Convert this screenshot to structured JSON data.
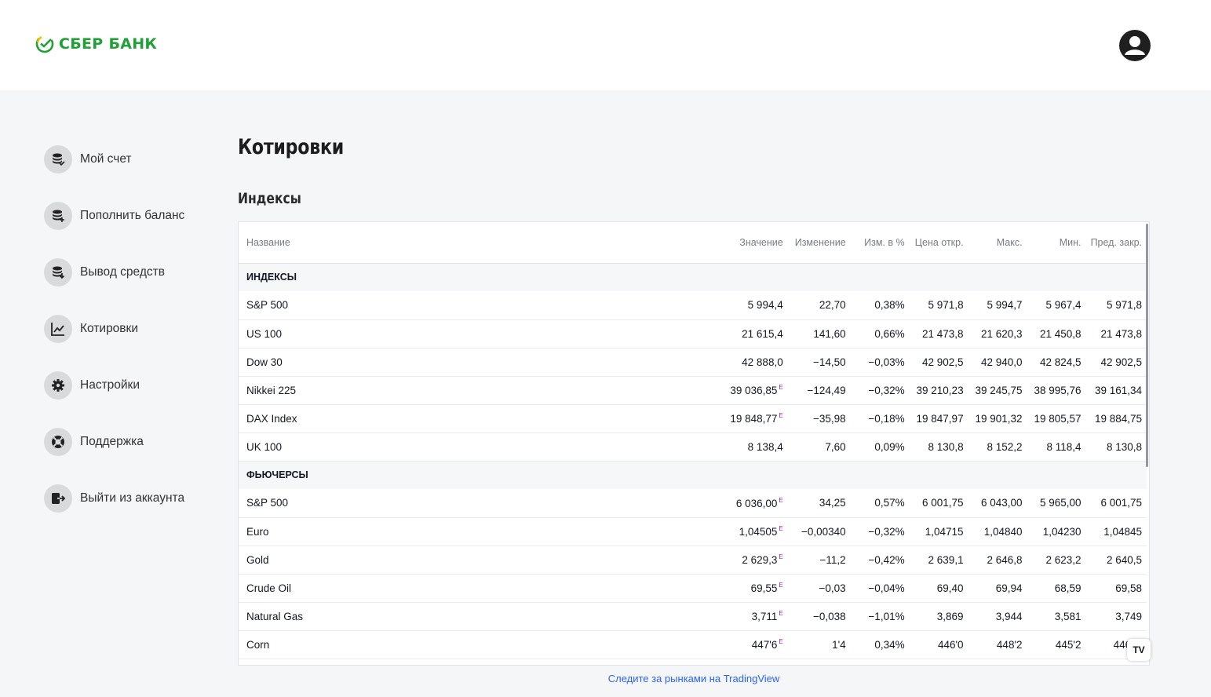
{
  "brand": {
    "name": "СБЕР БАНК",
    "accent": "#21a038"
  },
  "sidebar": {
    "items": [
      {
        "label": "Мой счет",
        "icon": "coins-check-icon"
      },
      {
        "label": "Пополнить баланс",
        "icon": "coins-plus-icon"
      },
      {
        "label": "Вывод средств",
        "icon": "coins-down-icon"
      },
      {
        "label": "Котировки",
        "icon": "chart-line-icon"
      },
      {
        "label": "Настройки",
        "icon": "gear-icon"
      },
      {
        "label": "Поддержка",
        "icon": "lifebuoy-icon"
      },
      {
        "label": "Выйти из аккаунта",
        "icon": "logout-icon"
      }
    ]
  },
  "page": {
    "title": "Котировки",
    "section": "Индексы"
  },
  "table": {
    "columns": [
      "Название",
      "Значение",
      "Изменение",
      "Изм. в %",
      "Цена откр.",
      "Макс.",
      "Мин.",
      "Пред. закр."
    ],
    "groups": [
      {
        "name": "ИНДЕКСЫ",
        "rows": [
          {
            "name": "S&P 500",
            "value": "5 994,4",
            "e": false,
            "change": "22,70",
            "pct": "0,38%",
            "dir": "pos",
            "open": "5 971,8",
            "high": "5 994,7",
            "low": "5 967,4",
            "prev": "5 971,8"
          },
          {
            "name": "US 100",
            "value": "21 615,4",
            "e": false,
            "change": "141,60",
            "pct": "0,66%",
            "dir": "pos",
            "open": "21 473,8",
            "high": "21 620,3",
            "low": "21 450,8",
            "prev": "21 473,8"
          },
          {
            "name": "Dow 30",
            "value": "42 888,0",
            "e": false,
            "change": "−14,50",
            "pct": "−0,03%",
            "dir": "neg",
            "open": "42 902,5",
            "high": "42 940,0",
            "low": "42 824,5",
            "prev": "42 902,5"
          },
          {
            "name": "Nikkei 225",
            "value": "39 036,85",
            "e": true,
            "change": "−124,49",
            "pct": "−0,32%",
            "dir": "neg",
            "open": "39 210,23",
            "high": "39 245,75",
            "low": "38 995,76",
            "prev": "39 161,34"
          },
          {
            "name": "DAX Index",
            "value": "19 848,77",
            "e": true,
            "change": "−35,98",
            "pct": "−0,18%",
            "dir": "neg",
            "open": "19 847,97",
            "high": "19 901,32",
            "low": "19 805,57",
            "prev": "19 884,75"
          },
          {
            "name": "UK 100",
            "value": "8 138,4",
            "e": false,
            "change": "7,60",
            "pct": "0,09%",
            "dir": "pos",
            "open": "8 130,8",
            "high": "8 152,2",
            "low": "8 118,4",
            "prev": "8 130,8"
          }
        ]
      },
      {
        "name": "ФЬЮЧЕРСЫ",
        "rows": [
          {
            "name": "S&P 500",
            "value": "6 036,00",
            "e": true,
            "change": "34,25",
            "pct": "0,57%",
            "dir": "pos",
            "open": "6 001,75",
            "high": "6 043,00",
            "low": "5 965,00",
            "prev": "6 001,75"
          },
          {
            "name": "Euro",
            "value": "1,04505",
            "e": true,
            "change": "−0,00340",
            "pct": "−0,32%",
            "dir": "neg",
            "open": "1,04715",
            "high": "1,04840",
            "low": "1,04230",
            "prev": "1,04845"
          },
          {
            "name": "Gold",
            "value": "2 629,3",
            "e": true,
            "change": "−11,2",
            "pct": "−0,42%",
            "dir": "neg",
            "open": "2 639,1",
            "high": "2 646,8",
            "low": "2 623,2",
            "prev": "2 640,5"
          },
          {
            "name": "Crude Oil",
            "value": "69,55",
            "e": true,
            "change": "−0,03",
            "pct": "−0,04%",
            "dir": "neg",
            "open": "69,40",
            "high": "69,94",
            "low": "68,59",
            "prev": "69,58"
          },
          {
            "name": "Natural Gas",
            "value": "3,711",
            "e": true,
            "change": "−0,038",
            "pct": "−1,01%",
            "dir": "neg",
            "open": "3,869",
            "high": "3,944",
            "low": "3,581",
            "prev": "3,749"
          },
          {
            "name": "Corn",
            "value": "447'6",
            "e": true,
            "change": "1'4",
            "pct": "0,34%",
            "dir": "pos",
            "open": "446'0",
            "high": "448'2",
            "low": "445'2",
            "prev": "446'..."
          }
        ]
      }
    ],
    "e_marker": "E"
  },
  "tv_badge": "TV",
  "footer": {
    "link": "Следите за рынками на TradingView"
  }
}
